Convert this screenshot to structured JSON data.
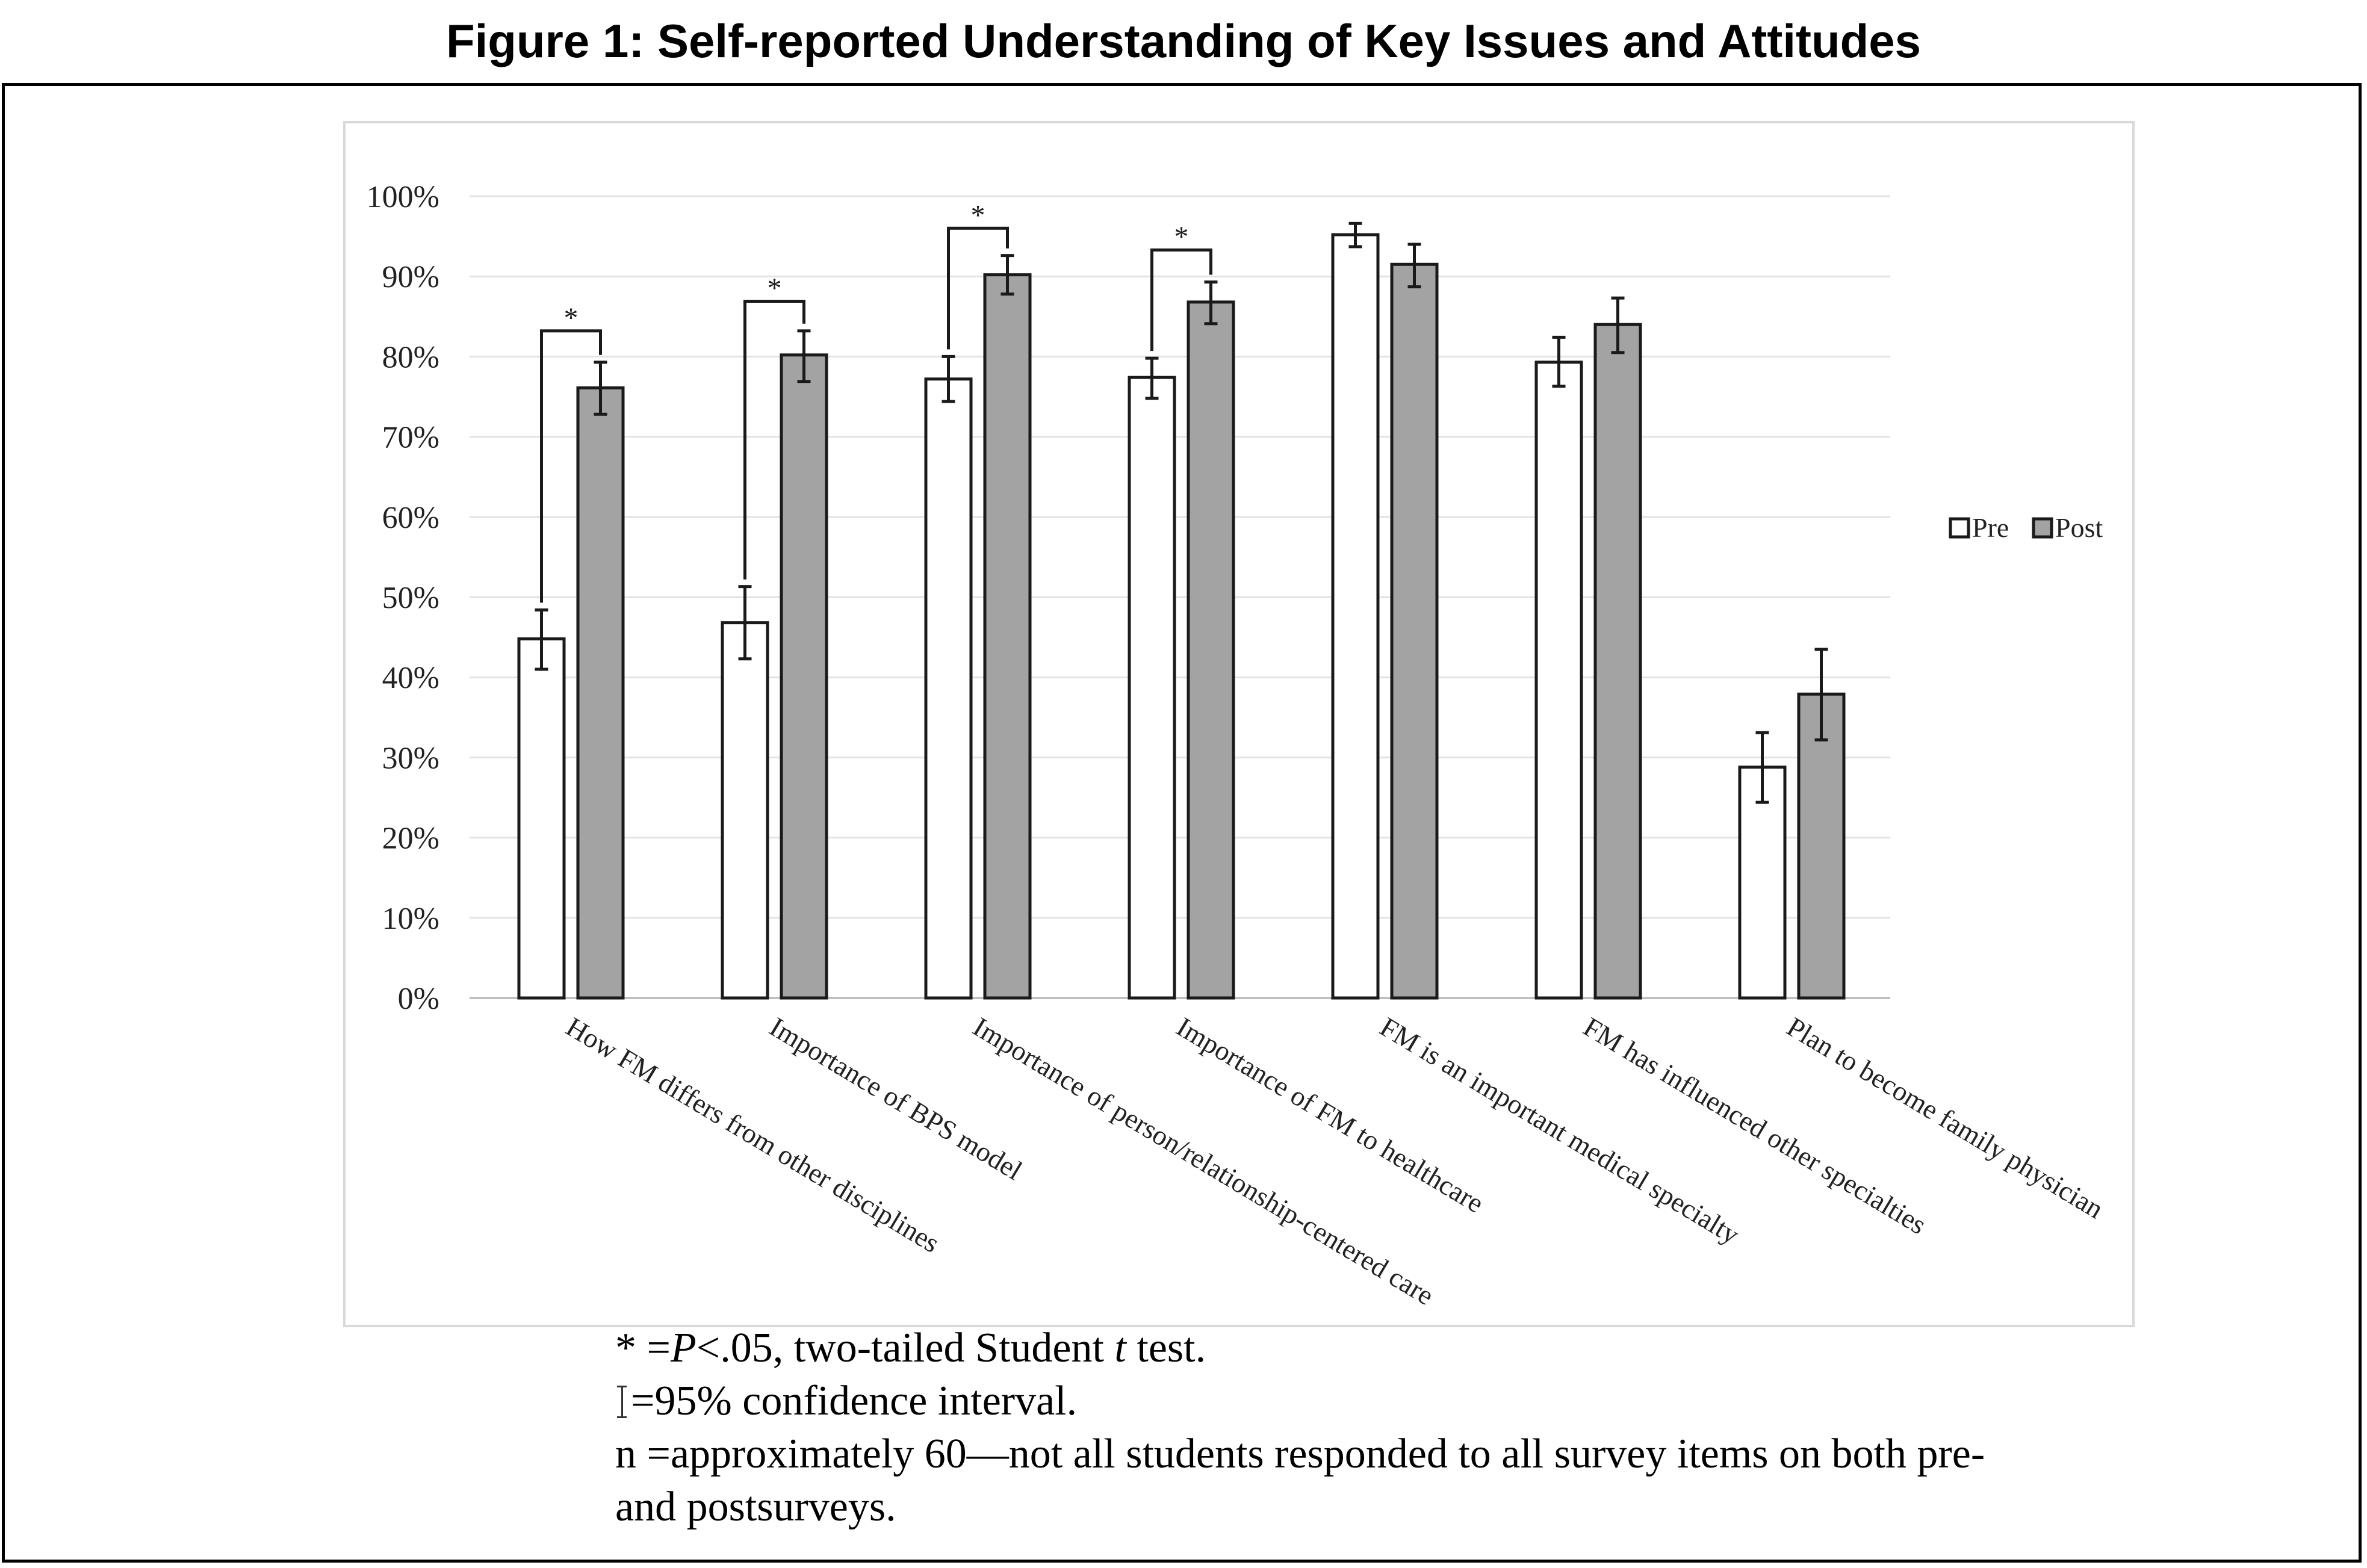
{
  "figure": {
    "title": "Figure 1: Self-reported Understanding of Key Issues and Attitudes"
  },
  "chart_data": {
    "type": "bar",
    "title": "",
    "xlabel": "",
    "ylabel": "",
    "ylim": [
      0,
      100
    ],
    "y_ticks": [
      "0%",
      "10%",
      "20%",
      "30%",
      "40%",
      "50%",
      "60%",
      "70%",
      "80%",
      "90%",
      "100%"
    ],
    "grid": true,
    "legend_position": "right",
    "categories": [
      "How FM differs from other disciplines",
      "Importance of BPS model",
      "Importance of person/relationship-centered care",
      "Importance of FM to healthcare",
      "FM is an important medical specialty",
      "FM has influenced other specialties",
      "Plan to become family physician"
    ],
    "series": [
      {
        "name": "Pre",
        "color": "#ffffff",
        "values": [
          44.8,
          46.8,
          77.2,
          77.4,
          95.2,
          79.3,
          28.8
        ],
        "ci_low": [
          41.0,
          42.3,
          74.4,
          74.8,
          93.7,
          76.3,
          24.4
        ],
        "ci_high": [
          48.4,
          51.3,
          80.0,
          79.8,
          96.6,
          82.4,
          33.1
        ]
      },
      {
        "name": "Post",
        "color": "#a3a3a3",
        "values": [
          76.1,
          80.2,
          90.2,
          86.8,
          91.5,
          84.0,
          37.9
        ],
        "ci_low": [
          72.8,
          76.9,
          87.8,
          84.1,
          88.7,
          80.5,
          32.2
        ],
        "ci_high": [
          79.3,
          83.2,
          92.6,
          89.3,
          94.0,
          87.3,
          43.5
        ]
      }
    ],
    "significance": [
      {
        "category_index": 0,
        "marker": "*",
        "bracket_level": 83.2
      },
      {
        "category_index": 1,
        "marker": "*",
        "bracket_level": 86.9
      },
      {
        "category_index": 2,
        "marker": "*",
        "bracket_level": 96.0
      },
      {
        "category_index": 3,
        "marker": "*",
        "bracket_level": 93.3
      }
    ]
  },
  "notes": {
    "significance_marker": "*",
    "significance_eq": " =",
    "p_symbol": "P",
    "significance_rest": "<.05, two-tailed Student ",
    "t_symbol": "t",
    "significance_tail": " test.",
    "ci_text": "=95% confidence interval.",
    "n_line1": "n =approximately 60—not all students responded to all survey items on both pre-",
    "n_line2": "and postsurveys."
  }
}
